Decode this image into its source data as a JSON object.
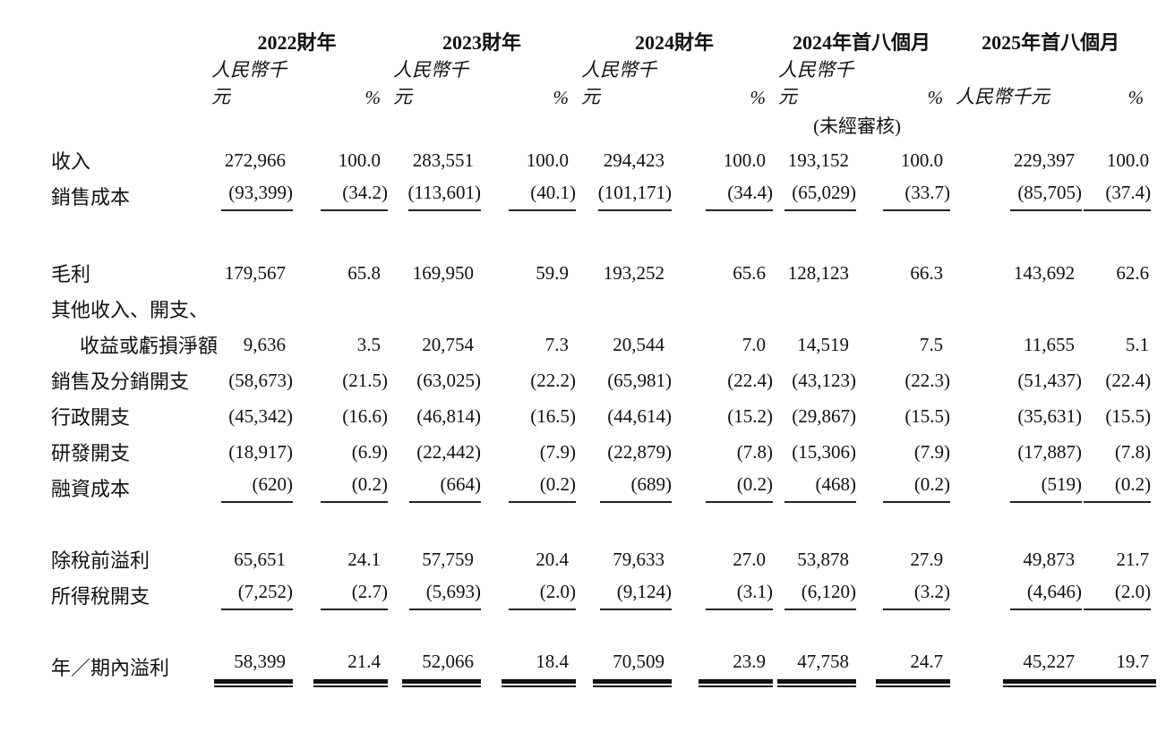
{
  "document": {
    "type": "income-statement-summary-table",
    "background_color": "#ffffff",
    "text_color": "#111111",
    "rule_color": "#111111"
  },
  "labels": {
    "unit": "人民幣千元",
    "pct": "%"
  },
  "columns": [
    {
      "year": "2022財年",
      "note": ""
    },
    {
      "year": "2023財年",
      "note": ""
    },
    {
      "year": "2024財年",
      "note": ""
    },
    {
      "year": "2024年首八個月",
      "note": "(未經審核)"
    },
    {
      "year": "2025年首八個月",
      "note": ""
    }
  ],
  "rows": [
    {
      "label": "收入",
      "indent": false,
      "rule": "none",
      "values": [
        "272,966",
        "100.0",
        "283,551",
        "100.0",
        "294,423",
        "100.0",
        "193,152",
        "100.0",
        "229,397",
        "100.0"
      ]
    },
    {
      "label": "銷售成本",
      "indent": false,
      "rule": "single",
      "values": [
        "(93,399)",
        "(34.2)",
        "(113,601)",
        "(40.1)",
        "(101,171)",
        "(34.4)",
        "(65,029)",
        "(33.7)",
        "(85,705)",
        "(37.4)"
      ]
    },
    {
      "spacer": true
    },
    {
      "label": "毛利",
      "indent": false,
      "rule": "none",
      "values": [
        "179,567",
        "65.8",
        "169,950",
        "59.9",
        "193,252",
        "65.6",
        "128,123",
        "66.3",
        "143,692",
        "62.6"
      ]
    },
    {
      "label": "其他收入、開支、",
      "indent": false,
      "rule": "none",
      "values": [
        "",
        "",
        "",
        "",
        "",
        "",
        "",
        "",
        "",
        ""
      ]
    },
    {
      "label": "收益或虧損淨額",
      "indent": true,
      "rule": "none",
      "values": [
        "9,636",
        "3.5",
        "20,754",
        "7.3",
        "20,544",
        "7.0",
        "14,519",
        "7.5",
        "11,655",
        "5.1"
      ]
    },
    {
      "label": "銷售及分銷開支",
      "indent": false,
      "rule": "none",
      "values": [
        "(58,673)",
        "(21.5)",
        "(63,025)",
        "(22.2)",
        "(65,981)",
        "(22.4)",
        "(43,123)",
        "(22.3)",
        "(51,437)",
        "(22.4)"
      ]
    },
    {
      "label": "行政開支",
      "indent": false,
      "rule": "none",
      "values": [
        "(45,342)",
        "(16.6)",
        "(46,814)",
        "(16.5)",
        "(44,614)",
        "(15.2)",
        "(29,867)",
        "(15.5)",
        "(35,631)",
        "(15.5)"
      ]
    },
    {
      "label": "研發開支",
      "indent": false,
      "rule": "none",
      "values": [
        "(18,917)",
        "(6.9)",
        "(22,442)",
        "(7.9)",
        "(22,879)",
        "(7.8)",
        "(15,306)",
        "(7.9)",
        "(17,887)",
        "(7.8)"
      ]
    },
    {
      "label": "融資成本",
      "indent": false,
      "rule": "single",
      "values": [
        "(620)",
        "(0.2)",
        "(664)",
        "(0.2)",
        "(689)",
        "(0.2)",
        "(468)",
        "(0.2)",
        "(519)",
        "(0.2)"
      ]
    },
    {
      "spacer": true
    },
    {
      "label": "除稅前溢利",
      "indent": false,
      "rule": "none",
      "values": [
        "65,651",
        "24.1",
        "57,759",
        "20.4",
        "79,633",
        "27.0",
        "53,878",
        "27.9",
        "49,873",
        "21.7"
      ]
    },
    {
      "label": "所得稅開支",
      "indent": false,
      "rule": "single",
      "values": [
        "(7,252)",
        "(2.7)",
        "(5,693)",
        "(2.0)",
        "(9,124)",
        "(3.1)",
        "(6,120)",
        "(3.2)",
        "(4,646)",
        "(2.0)"
      ]
    },
    {
      "spacer": true
    },
    {
      "label": "年／期內溢利",
      "indent": false,
      "rule": "double",
      "values": [
        "58,399",
        "21.4",
        "52,066",
        "18.4",
        "70,509",
        "23.9",
        "47,758",
        "24.7",
        "45,227",
        "19.7"
      ]
    }
  ]
}
